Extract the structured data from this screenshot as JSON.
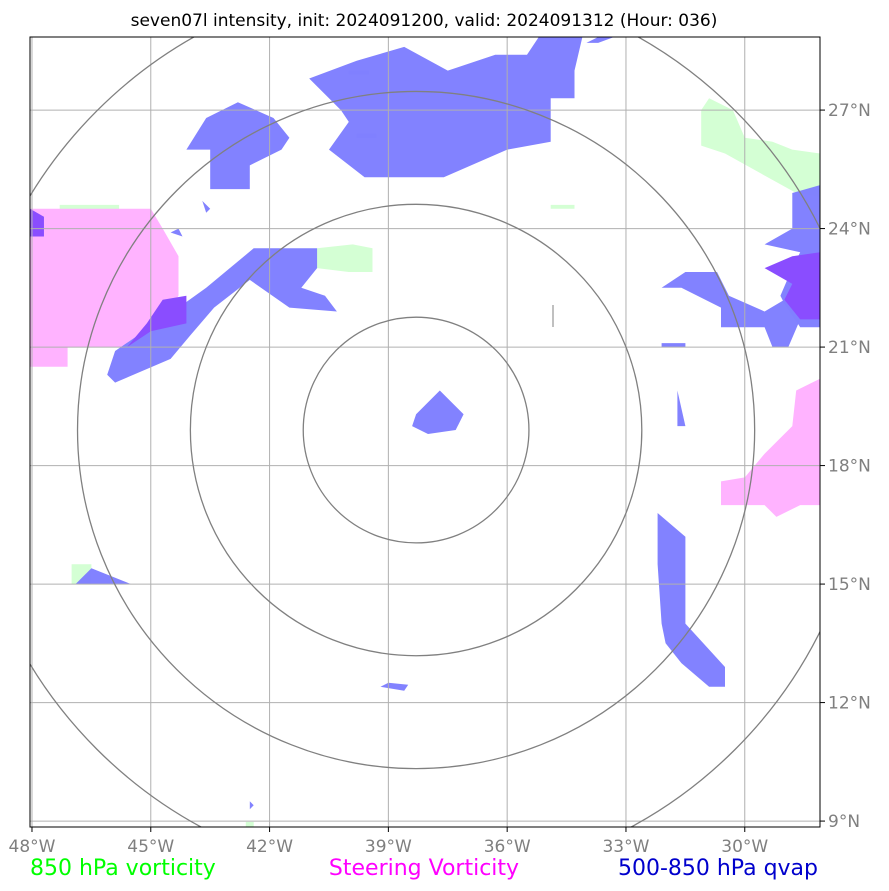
{
  "chart_data": {
    "type": "map",
    "title": "seven07l intensity, init: 2024091200, valid: 2024091312 (Hour: 036)",
    "x_ticks": [
      {
        "value": -48,
        "label": "48°W"
      },
      {
        "value": -45,
        "label": "45°W"
      },
      {
        "value": -42,
        "label": "42°W"
      },
      {
        "value": -39,
        "label": "39°W"
      },
      {
        "value": -36,
        "label": "36°W"
      },
      {
        "value": -33,
        "label": "33°W"
      },
      {
        "value": -30,
        "label": "30°W"
      }
    ],
    "y_ticks": [
      {
        "value": 27,
        "label": "27°N"
      },
      {
        "value": 24,
        "label": "24°N"
      },
      {
        "value": 21,
        "label": "21°N"
      },
      {
        "value": 18,
        "label": "18°N"
      },
      {
        "value": 15,
        "label": "15°N"
      },
      {
        "value": 12,
        "label": "12°N"
      },
      {
        "value": 9,
        "label": "9°N"
      }
    ],
    "xlim": [
      -48.05,
      -28.1
    ],
    "ylim": [
      8.85,
      28.85
    ],
    "center": {
      "lon": -38.3,
      "lat": 18.9
    },
    "range_rings_deg": [
      2.85,
      5.7,
      8.55,
      11.4
    ],
    "grid": true,
    "legend": [
      {
        "label": "850 hPa vorticity",
        "color": "#00ff00"
      },
      {
        "label": "Steering Vorticity",
        "color": "#ff00ff"
      },
      {
        "label": "500-850 hPa qvap",
        "color": "#0000cc"
      }
    ],
    "colors": {
      "vorticity_850": "#d4ffd4",
      "steering_vorticity": "#ffb3ff",
      "qvap": "#7f7fff",
      "overlap": "#8a4dff",
      "ring": "#808080",
      "grid": "#b0b0b0"
    },
    "fields": [
      {
        "field": "850 hPa vorticity",
        "points": [
          [
            -30.9,
            27.3
          ],
          [
            -30.3,
            27.0
          ],
          [
            -30.0,
            26.3
          ],
          [
            -29.3,
            26.2
          ],
          [
            -28.8,
            26.0
          ],
          [
            -28.1,
            25.9
          ],
          [
            -28.1,
            24.8
          ],
          [
            -28.7,
            24.9
          ],
          [
            -29.6,
            25.4
          ],
          [
            -30.5,
            25.9
          ],
          [
            -31.1,
            26.1
          ],
          [
            -31.1,
            27.0
          ]
        ]
      },
      {
        "field": "850 hPa vorticity",
        "points": [
          [
            -40.8,
            23.5
          ],
          [
            -39.9,
            23.6
          ],
          [
            -39.4,
            23.5
          ],
          [
            -39.4,
            22.9
          ],
          [
            -40.0,
            22.9
          ],
          [
            -40.8,
            23.0
          ]
        ]
      },
      {
        "field": "850 hPa vorticity",
        "points": [
          [
            -47.0,
            15.5
          ],
          [
            -46.5,
            15.5
          ],
          [
            -46.5,
            15.0
          ],
          [
            -47.0,
            15.0
          ]
        ]
      },
      {
        "field": "850 hPa vorticity",
        "points": [
          [
            -47.3,
            24.6
          ],
          [
            -45.8,
            24.6
          ],
          [
            -45.8,
            24.4
          ],
          [
            -47.3,
            24.4
          ]
        ]
      },
      {
        "field": "850 hPa vorticity",
        "points": [
          [
            -34.9,
            24.6
          ],
          [
            -34.3,
            24.6
          ],
          [
            -34.3,
            24.5
          ],
          [
            -34.9,
            24.5
          ]
        ]
      },
      {
        "field": "850 hPa vorticity",
        "points": [
          [
            -42.6,
            8.98
          ],
          [
            -42.4,
            8.98
          ],
          [
            -42.4,
            8.85
          ],
          [
            -42.6,
            8.85
          ]
        ]
      },
      {
        "field": "Steering Vorticity",
        "points": [
          [
            -48.05,
            24.5
          ],
          [
            -45.0,
            24.5
          ],
          [
            -44.7,
            24.0
          ],
          [
            -44.3,
            23.3
          ],
          [
            -44.3,
            22.3
          ],
          [
            -45.1,
            21.0
          ],
          [
            -47.1,
            21.0
          ],
          [
            -47.1,
            20.5
          ],
          [
            -48.05,
            20.5
          ]
        ]
      },
      {
        "field": "Steering Vorticity",
        "points": [
          [
            -28.1,
            20.2
          ],
          [
            -28.7,
            19.9
          ],
          [
            -28.8,
            19.0
          ],
          [
            -29.5,
            18.3
          ],
          [
            -30.0,
            17.7
          ],
          [
            -30.6,
            17.6
          ],
          [
            -30.6,
            17.0
          ],
          [
            -29.5,
            17.0
          ],
          [
            -29.2,
            16.7
          ],
          [
            -28.6,
            17.0
          ],
          [
            -28.1,
            17.0
          ]
        ]
      },
      {
        "field": "500-850 hPa qvap",
        "points": [
          [
            -44.3,
            22.0
          ],
          [
            -43.6,
            22.5
          ],
          [
            -42.4,
            23.5
          ],
          [
            -40.8,
            23.5
          ],
          [
            -40.8,
            23.0
          ],
          [
            -41.2,
            22.5
          ],
          [
            -40.6,
            22.3
          ],
          [
            -40.3,
            21.9
          ],
          [
            -41.5,
            22.0
          ],
          [
            -42.5,
            22.7
          ],
          [
            -43.4,
            22.0
          ],
          [
            -44.0,
            21.3
          ],
          [
            -44.5,
            20.7
          ],
          [
            -45.9,
            20.1
          ],
          [
            -46.1,
            20.3
          ],
          [
            -45.9,
            20.9
          ]
        ]
      },
      {
        "field": "500-850 hPa qvap",
        "points": [
          [
            -43.6,
            26.8
          ],
          [
            -42.8,
            27.2
          ],
          [
            -41.9,
            26.8
          ],
          [
            -41.5,
            26.3
          ],
          [
            -41.7,
            26.0
          ],
          [
            -42.5,
            25.6
          ],
          [
            -42.5,
            25.0
          ],
          [
            -43.5,
            25.0
          ],
          [
            -43.5,
            26.0
          ],
          [
            -44.1,
            26.0
          ]
        ]
      },
      {
        "field": "500-850 hPa qvap",
        "points": [
          [
            -39.8,
            28.25
          ],
          [
            -38.6,
            28.6
          ],
          [
            -37.5,
            28.0
          ],
          [
            -36.3,
            28.4
          ],
          [
            -35.5,
            28.4
          ],
          [
            -35.2,
            28.85
          ],
          [
            -33.7,
            28.85
          ],
          [
            -34.0,
            28.7
          ],
          [
            -33.7,
            28.7
          ],
          [
            -33.3,
            28.85
          ],
          [
            -34.1,
            28.85
          ],
          [
            -34.3,
            28.0
          ],
          [
            -34.3,
            27.3
          ],
          [
            -34.9,
            27.3
          ],
          [
            -34.9,
            26.2
          ],
          [
            -36.0,
            26.0
          ],
          [
            -37.6,
            25.3
          ],
          [
            -39.6,
            25.3
          ],
          [
            -40.5,
            26.0
          ],
          [
            -40.0,
            26.7
          ],
          [
            -40.2,
            27.0
          ],
          [
            -41.0,
            27.8
          ]
        ]
      },
      {
        "field": "500-850 hPa qvap",
        "points": [
          [
            -38.3,
            19.3
          ],
          [
            -37.7,
            19.9
          ],
          [
            -37.1,
            19.3
          ],
          [
            -37.3,
            18.9
          ],
          [
            -38.0,
            18.8
          ],
          [
            -38.4,
            19.0
          ]
        ]
      },
      {
        "field": "500-850 hPa qvap",
        "points": [
          [
            -31.5,
            22.9
          ],
          [
            -30.7,
            22.9
          ],
          [
            -30.4,
            22.3
          ],
          [
            -29.5,
            21.9
          ],
          [
            -29.0,
            22.2
          ],
          [
            -28.6,
            21.7
          ],
          [
            -28.9,
            21.0
          ],
          [
            -29.3,
            21.0
          ],
          [
            -29.5,
            21.5
          ],
          [
            -30.6,
            21.5
          ],
          [
            -30.6,
            22.0
          ],
          [
            -31.6,
            22.5
          ],
          [
            -32.1,
            22.5
          ]
        ]
      },
      {
        "field": "500-850 hPa qvap",
        "points": [
          [
            -29.5,
            23.6
          ],
          [
            -28.8,
            24.0
          ],
          [
            -28.8,
            24.9
          ],
          [
            -28.1,
            25.1
          ],
          [
            -28.1,
            21.5
          ],
          [
            -28.6,
            21.5
          ],
          [
            -29.0,
            22.1
          ],
          [
            -29.1,
            22.3
          ],
          [
            -28.8,
            23.0
          ],
          [
            -28.6,
            23.4
          ]
        ]
      },
      {
        "field": "500-850 hPa qvap",
        "points": [
          [
            -32.2,
            16.8
          ],
          [
            -31.5,
            16.2
          ],
          [
            -31.5,
            14.0
          ],
          [
            -30.5,
            12.9
          ],
          [
            -30.5,
            12.4
          ],
          [
            -30.9,
            12.4
          ],
          [
            -31.6,
            13.0
          ],
          [
            -32.0,
            13.5
          ],
          [
            -32.1,
            14.0
          ],
          [
            -32.2,
            15.5
          ]
        ]
      },
      {
        "field": "500-850 hPa qvap",
        "points": [
          [
            -31.7,
            19.9
          ],
          [
            -31.5,
            19.0
          ],
          [
            -31.7,
            19.0
          ],
          [
            -31.7,
            19.5
          ]
        ]
      },
      {
        "field": "500-850 hPa qvap",
        "points": [
          [
            -46.5,
            15.4
          ],
          [
            -45.5,
            15.0
          ],
          [
            -46.9,
            15.0
          ]
        ]
      },
      {
        "field": "500-850 hPa qvap",
        "points": [
          [
            -48.05,
            24.4
          ],
          [
            -47.7,
            24.3
          ],
          [
            -47.7,
            23.8
          ],
          [
            -48.05,
            23.8
          ]
        ]
      },
      {
        "field": "500-850 hPa qvap",
        "points": [
          [
            -32.1,
            21.1
          ],
          [
            -31.5,
            21.1
          ],
          [
            -31.5,
            21.0
          ],
          [
            -32.1,
            21.0
          ]
        ]
      },
      {
        "field": "500-850 hPa qvap",
        "points": [
          [
            -40.0,
            28.0
          ],
          [
            -39.5,
            28.0
          ],
          [
            -39.5,
            27.9
          ],
          [
            -40.0,
            27.9
          ]
        ]
      },
      {
        "field": "500-850 hPa qvap",
        "points": [
          [
            -39.0,
            12.5
          ],
          [
            -38.5,
            12.45
          ],
          [
            -38.6,
            12.3
          ],
          [
            -39.2,
            12.4
          ]
        ]
      },
      {
        "field": "500-850 hPa qvap",
        "points": [
          [
            -44.5,
            23.9
          ],
          [
            -44.3,
            24.0
          ],
          [
            -44.2,
            23.8
          ]
        ]
      },
      {
        "field": "500-850 hPa qvap",
        "points": [
          [
            -43.7,
            24.7
          ],
          [
            -43.5,
            24.5
          ],
          [
            -43.6,
            24.4
          ]
        ]
      },
      {
        "field": "500-850 hPa qvap",
        "points": [
          [
            -42.5,
            9.5
          ],
          [
            -42.4,
            9.4
          ],
          [
            -42.5,
            9.3
          ]
        ]
      },
      {
        "field": "500-850 hPa qvap",
        "points": [
          [
            -39.8,
            26.4
          ],
          [
            -39.3,
            26.4
          ],
          [
            -39.3,
            26.3
          ],
          [
            -39.8,
            26.3
          ]
        ]
      },
      {
        "field": "overlap",
        "points": [
          [
            -44.7,
            22.2
          ],
          [
            -44.1,
            22.3
          ],
          [
            -44.1,
            21.6
          ],
          [
            -45.0,
            21.4
          ],
          [
            -45.6,
            21.0
          ],
          [
            -45.1,
            21.6
          ]
        ]
      },
      {
        "field": "overlap",
        "points": [
          [
            -48.05,
            24.5
          ],
          [
            -47.7,
            24.3
          ],
          [
            -47.7,
            23.8
          ],
          [
            -48.05,
            23.8
          ]
        ]
      },
      {
        "field": "overlap",
        "points": [
          [
            -29.5,
            23.0
          ],
          [
            -28.8,
            23.3
          ],
          [
            -28.1,
            23.4
          ],
          [
            -28.1,
            21.7
          ],
          [
            -28.6,
            21.7
          ],
          [
            -29.0,
            22.2
          ],
          [
            -28.8,
            22.6
          ]
        ]
      }
    ]
  }
}
